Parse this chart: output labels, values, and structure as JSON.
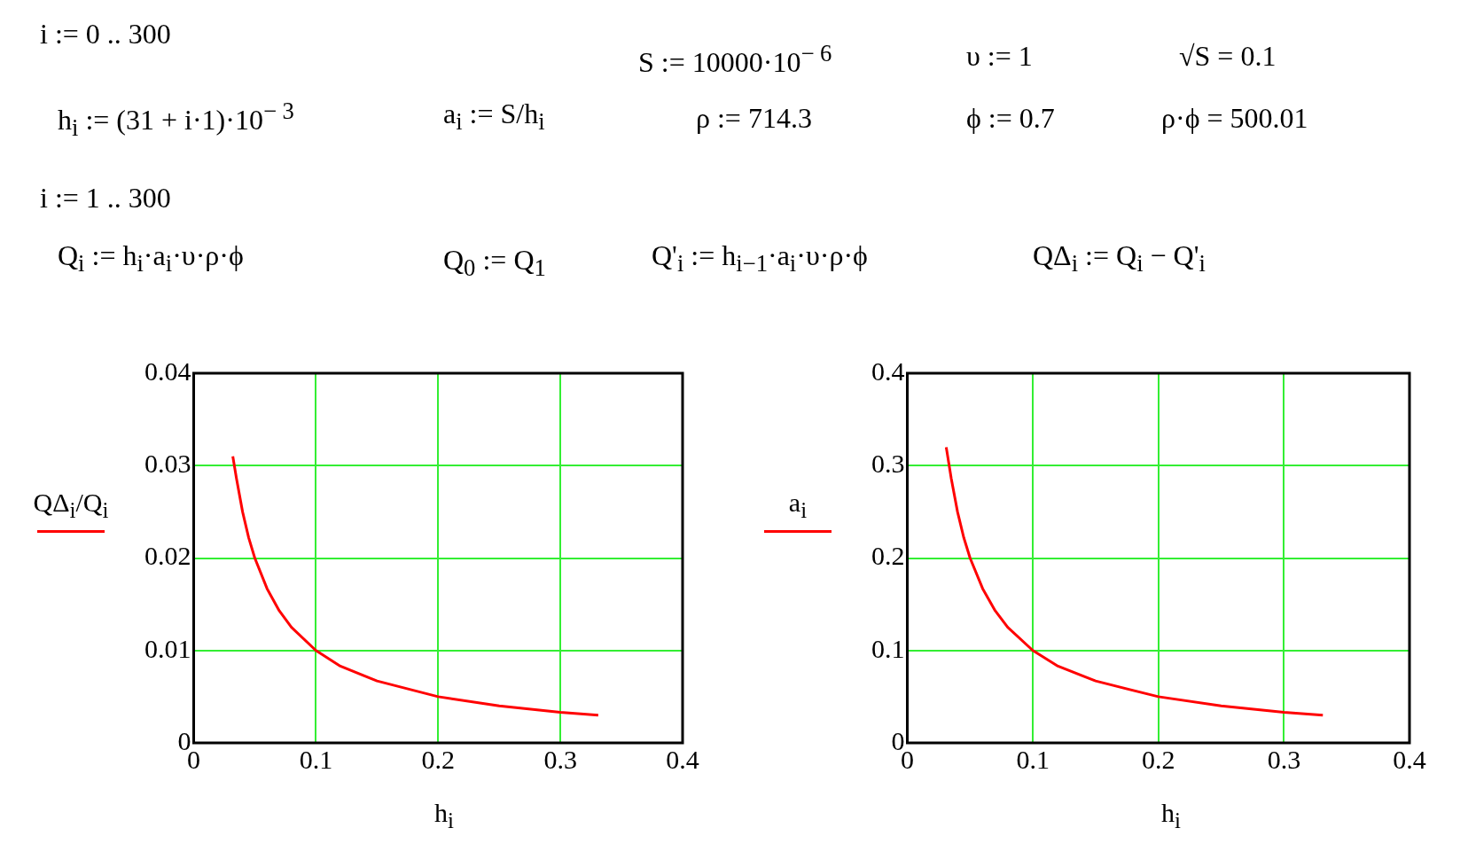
{
  "chart_data": [
    {
      "type": "line",
      "xlabel": "h$_{i}$",
      "xlim": [
        0,
        0.4
      ],
      "xticks": [
        0,
        0.1,
        0.2,
        0.3,
        0.4
      ],
      "ylim": [
        0,
        0.04
      ],
      "yticks": [
        0,
        0.01,
        0.02,
        0.03,
        0.04
      ],
      "grid": true,
      "legend": "left",
      "annotations": [
        "i := 0 .. 300",
        "S := 10000·10$^{− 6}$",
        "υ := 1",
        "√S = 0.1",
        "h$_{i}$ := (31 + i·1)·10$^{− 3}$",
        "a$_{i}$ := S/h$_{i}$",
        "ρ := 714.3",
        "ϕ := 0.7",
        "ρ·ϕ = 500.01",
        "i := 1 .. 300",
        "Q$_{i}$ := h$_{i}$·a$_{i}$·υ·ρ·ϕ",
        "Q$_{0}$ := Q$_{1}$",
        "Q'$_{i}$ := h$_{i−1}$·a$_{i}$·υ·ρ·ϕ",
        "QΔ$_{i}$ := Q$_{i}$ − Q'$_{i}$"
      ],
      "series": [
        {
          "name": "QΔ$_{i}$/Q$_{i}$",
          "color": "#ff0000",
          "x": [
            0.032,
            0.035,
            0.04,
            0.045,
            0.05,
            0.06,
            0.07,
            0.08,
            0.1,
            0.12,
            0.15,
            0.2,
            0.25,
            0.3,
            0.331
          ],
          "values": [
            0.031,
            0.0286,
            0.025,
            0.0222,
            0.02,
            0.0167,
            0.0143,
            0.0125,
            0.01,
            0.0083,
            0.0067,
            0.005,
            0.004,
            0.0033,
            0.003
          ]
        }
      ]
    },
    {
      "type": "line",
      "xlabel": "h$_{i}$",
      "xlim": [
        0,
        0.4
      ],
      "xticks": [
        0,
        0.1,
        0.2,
        0.3,
        0.4
      ],
      "ylim": [
        0,
        0.4
      ],
      "yticks": [
        0,
        0.1,
        0.2,
        0.3,
        0.4
      ],
      "grid": true,
      "legend": "left",
      "series": [
        {
          "name": "a$_{i}$",
          "color": "#ff0000",
          "x": [
            0.031,
            0.035,
            0.04,
            0.045,
            0.05,
            0.06,
            0.07,
            0.08,
            0.1,
            0.12,
            0.15,
            0.2,
            0.25,
            0.3,
            0.331
          ],
          "values": [
            0.32,
            0.286,
            0.25,
            0.222,
            0.2,
            0.167,
            0.143,
            0.125,
            0.1,
            0.083,
            0.067,
            0.05,
            0.04,
            0.033,
            0.03
          ]
        }
      ]
    }
  ]
}
